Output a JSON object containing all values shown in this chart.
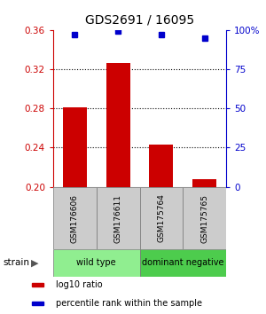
{
  "title": "GDS2691 / 16095",
  "samples": [
    "GSM176606",
    "GSM176611",
    "GSM175764",
    "GSM175765"
  ],
  "log10_ratio": [
    0.281,
    0.326,
    0.243,
    0.208
  ],
  "percentile_rank": [
    97.0,
    99.5,
    97.0,
    94.5
  ],
  "bar_color": "#cc0000",
  "dot_color": "#0000cc",
  "ylim_left": [
    0.2,
    0.36
  ],
  "ylim_right": [
    0,
    100
  ],
  "yticks_left": [
    0.2,
    0.24,
    0.28,
    0.32,
    0.36
  ],
  "yticks_right": [
    0,
    25,
    50,
    75,
    100
  ],
  "ytick_labels_left": [
    "0.20",
    "0.24",
    "0.28",
    "0.32",
    "0.36"
  ],
  "ytick_labels_right": [
    "0",
    "25",
    "50",
    "75",
    "100%"
  ],
  "groups": [
    {
      "label": "wild type",
      "indices": [
        0,
        1
      ],
      "color": "#90ee90"
    },
    {
      "label": "dominant negative",
      "indices": [
        2,
        3
      ],
      "color": "#4dcc4d"
    }
  ],
  "strain_label": "strain",
  "legend_items": [
    {
      "color": "#cc0000",
      "label": "log10 ratio"
    },
    {
      "color": "#0000cc",
      "label": "percentile rank within the sample"
    }
  ],
  "bar_base": 0.2,
  "bar_width": 0.55,
  "background_color": "#ffffff"
}
